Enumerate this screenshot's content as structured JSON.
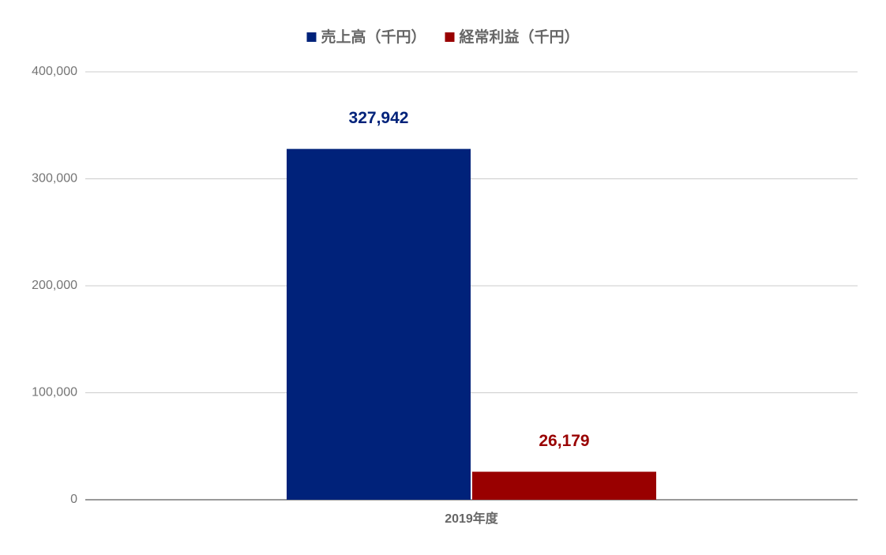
{
  "chart_data": {
    "type": "bar",
    "categories": [
      "2019年度"
    ],
    "series": [
      {
        "name": "売上高（千円）",
        "color": "#00227a",
        "values": [
          327942
        ],
        "value_labels": [
          "327,942"
        ]
      },
      {
        "name": "経常利益（千円）",
        "color": "#990000",
        "values": [
          26179
        ],
        "value_labels": [
          "26,179"
        ]
      }
    ],
    "ylim": [
      0,
      400000
    ],
    "yticks": [
      0,
      {
        "value": 100000,
        "label": "100,000"
      },
      {
        "value": 200000,
        "label": "200,000"
      },
      {
        "value": 300000,
        "label": "300,000"
      },
      {
        "value": 400000,
        "label": "400,000"
      }
    ],
    "grid": true,
    "legend": "top"
  }
}
